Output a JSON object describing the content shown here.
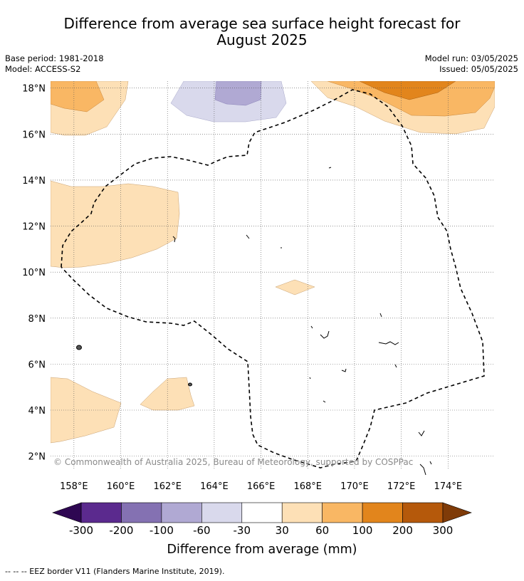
{
  "header": {
    "title_line1": "Difference from average sea surface height forecast for",
    "title_line2": "August 2025",
    "base_period": "Base period: 1981-2018",
    "model": "Model: ACCESS-S2",
    "model_run": "Model run: 03/05/2025",
    "issued": "Issued: 05/05/2025"
  },
  "map": {
    "lon_labels": [
      "158°E",
      "160°E",
      "162°E",
      "164°E",
      "166°E",
      "168°E",
      "170°E",
      "172°E",
      "174°E"
    ],
    "lat_labels": [
      "18°N",
      "16°N",
      "14°N",
      "12°N",
      "10°N",
      "8°N",
      "6°N",
      "4°N",
      "2°N"
    ],
    "lon_range": [
      157,
      176
    ],
    "lat_range": [
      1.4,
      18.3
    ],
    "copyright": "© Commonwealth of Australia 2025, Bureau of Meteorology, supported by COSPPac"
  },
  "colorbar": {
    "tick_labels": [
      "-300",
      "-200",
      "-100",
      "-60",
      "-30",
      "30",
      "60",
      "100",
      "200",
      "300"
    ],
    "colors": [
      "#5b2a8e",
      "#8471b2",
      "#b0a9d3",
      "#d9d9ec",
      "#ffffff",
      "#fde0b6",
      "#f9b764",
      "#e2851c",
      "#b5590b"
    ],
    "under_color": "#2e0752",
    "over_color": "#7f3b08",
    "title": "Difference from average (mm)"
  },
  "legend": {
    "eez_text": "--  --  -- EEZ border V11 (Flanders Marine Institute, 2019)."
  }
}
